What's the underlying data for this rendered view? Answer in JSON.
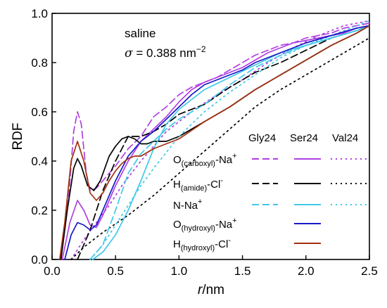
{
  "chart_data": {
    "type": "line",
    "annotation": {
      "line1": "saline",
      "sigma_symbol": "σ",
      "sigma_value": " = 0.388 nm",
      "sigma_exp": "−2"
    },
    "xlabel": {
      "italic": "r",
      "rest": "/nm"
    },
    "ylabel": "RDF",
    "xlim": [
      0.0,
      2.5
    ],
    "ylim": [
      0.0,
      1.0
    ],
    "x_ticks": [
      "0.0",
      "0.5",
      "1.0",
      "1.5",
      "2.0",
      "2.5"
    ],
    "y_ticks": [
      "0.0",
      "0.2",
      "0.4",
      "0.6",
      "0.8",
      "1.0"
    ],
    "grid": false,
    "legend": {
      "position": "lower-right",
      "columns": [
        "Gly24",
        "Ser24",
        "Val24"
      ],
      "rows": [
        {
          "base": "O",
          "sub": "(carboxyl)",
          "tail": "-Na",
          "sup": "+",
          "color": "#b040e0"
        },
        {
          "base": "H",
          "sub": "(amide)",
          "tail": "-Cl",
          "sup": "-",
          "color": "#000000"
        },
        {
          "base": "N-Na",
          "sub": "",
          "tail": "",
          "sup": "+",
          "color": "#40c8e8"
        },
        {
          "base": "O",
          "sub": "(hydroxyl)",
          "tail": "-Na",
          "sup": "+",
          "color": "#1818c8"
        },
        {
          "base": "H",
          "sub": "(hydroxyl)",
          "tail": "-Cl",
          "sup": "-",
          "color": "#a03010"
        }
      ]
    },
    "series": [
      {
        "pair": "O(carboxyl)-Na+",
        "molecule": "Gly24",
        "style": "dashed",
        "color": "#b040e0",
        "x": [
          0.07,
          0.13,
          0.17,
          0.2,
          0.23,
          0.27,
          0.3,
          0.35,
          0.4,
          0.5,
          0.6,
          0.7,
          0.8,
          0.9,
          1.0,
          1.1,
          1.2,
          1.3,
          1.4,
          1.5,
          1.6,
          1.7,
          1.8,
          1.9,
          2.0,
          2.1,
          2.2,
          2.3,
          2.4,
          2.5
        ],
        "y": [
          0.0,
          0.25,
          0.52,
          0.6,
          0.55,
          0.35,
          0.28,
          0.29,
          0.32,
          0.38,
          0.45,
          0.5,
          0.58,
          0.62,
          0.67,
          0.7,
          0.72,
          0.74,
          0.77,
          0.8,
          0.83,
          0.85,
          0.87,
          0.88,
          0.9,
          0.91,
          0.92,
          0.94,
          0.95,
          0.96
        ]
      },
      {
        "pair": "O(carboxyl)-Na+",
        "molecule": "Ser24",
        "style": "solid",
        "color": "#b040e0",
        "x": [
          0.08,
          0.14,
          0.2,
          0.25,
          0.3,
          0.35,
          0.4,
          0.5,
          0.6,
          0.7,
          0.8,
          0.9,
          1.0,
          1.1,
          1.2,
          1.3,
          1.4,
          1.5,
          1.6,
          1.7,
          1.8,
          1.9,
          2.0,
          2.1,
          2.2,
          2.3,
          2.4,
          2.5
        ],
        "y": [
          0.0,
          0.15,
          0.24,
          0.2,
          0.14,
          0.13,
          0.18,
          0.3,
          0.4,
          0.48,
          0.53,
          0.58,
          0.64,
          0.69,
          0.72,
          0.74,
          0.76,
          0.78,
          0.81,
          0.84,
          0.86,
          0.88,
          0.89,
          0.9,
          0.91,
          0.92,
          0.94,
          0.95
        ]
      },
      {
        "pair": "O(carboxyl)-Na+",
        "molecule": "Val24",
        "style": "dotted",
        "color": "#b040e0",
        "x": [
          0.15,
          0.25,
          0.35,
          0.45,
          0.55,
          0.7,
          0.9,
          1.1,
          1.3,
          1.5,
          1.7,
          1.9,
          2.1,
          2.3,
          2.5
        ],
        "y": [
          0.0,
          0.08,
          0.15,
          0.22,
          0.3,
          0.4,
          0.52,
          0.6,
          0.67,
          0.73,
          0.8,
          0.86,
          0.91,
          0.95,
          0.97
        ]
      },
      {
        "pair": "H(amide)-Cl-",
        "molecule": "Gly24",
        "style": "dashed",
        "color": "#000000",
        "x": [
          0.2,
          0.3,
          0.4,
          0.5,
          0.6,
          0.7,
          0.8,
          0.9,
          1.0,
          1.2,
          1.4,
          1.6,
          1.8,
          2.0,
          2.2,
          2.4,
          2.5
        ],
        "y": [
          0.0,
          0.12,
          0.28,
          0.4,
          0.5,
          0.5,
          0.52,
          0.55,
          0.59,
          0.63,
          0.7,
          0.76,
          0.8,
          0.85,
          0.9,
          0.93,
          0.95
        ]
      },
      {
        "pair": "H(amide)-Cl-",
        "molecule": "Ser24",
        "style": "solid",
        "color": "#000000",
        "x": [
          0.07,
          0.12,
          0.17,
          0.2,
          0.23,
          0.28,
          0.33,
          0.38,
          0.45,
          0.5,
          0.55,
          0.6,
          0.65,
          0.7,
          0.75,
          0.8,
          0.9,
          1.0,
          1.2,
          1.4,
          1.6,
          1.8,
          2.0,
          2.2,
          2.4,
          2.5
        ],
        "y": [
          0.0,
          0.2,
          0.37,
          0.41,
          0.38,
          0.3,
          0.28,
          0.32,
          0.42,
          0.46,
          0.49,
          0.5,
          0.49,
          0.47,
          0.47,
          0.48,
          0.48,
          0.5,
          0.56,
          0.62,
          0.69,
          0.75,
          0.81,
          0.87,
          0.92,
          0.95
        ]
      },
      {
        "pair": "H(amide)-Cl-",
        "molecule": "Val24",
        "style": "dotted",
        "color": "#000000",
        "x": [
          0.15,
          0.25,
          0.4,
          0.6,
          0.8,
          1.0,
          1.2,
          1.4,
          1.6,
          1.8,
          2.0,
          2.2,
          2.4,
          2.5
        ],
        "y": [
          0.0,
          0.05,
          0.11,
          0.18,
          0.26,
          0.35,
          0.44,
          0.53,
          0.62,
          0.69,
          0.75,
          0.81,
          0.87,
          0.9
        ]
      },
      {
        "pair": "N-Na+",
        "molecule": "Gly24",
        "style": "dashed",
        "color": "#40c8e8",
        "x": [
          0.3,
          0.4,
          0.5,
          0.6,
          0.7,
          0.8,
          0.9,
          1.0,
          1.2,
          1.4,
          1.6,
          1.8,
          2.0,
          2.2,
          2.4,
          2.5
        ],
        "y": [
          0.0,
          0.06,
          0.2,
          0.35,
          0.43,
          0.48,
          0.53,
          0.57,
          0.63,
          0.71,
          0.78,
          0.83,
          0.87,
          0.9,
          0.93,
          0.95
        ]
      },
      {
        "pair": "N-Na+",
        "molecule": "Ser24",
        "style": "solid",
        "color": "#40c8e8",
        "x": [
          0.32,
          0.4,
          0.5,
          0.6,
          0.7,
          0.8,
          0.9,
          1.0,
          1.2,
          1.4,
          1.6,
          1.8,
          2.0,
          2.2,
          2.4,
          2.5
        ],
        "y": [
          0.0,
          0.03,
          0.1,
          0.2,
          0.32,
          0.45,
          0.55,
          0.61,
          0.69,
          0.74,
          0.79,
          0.84,
          0.87,
          0.9,
          0.93,
          0.95
        ]
      },
      {
        "pair": "N-Na+",
        "molecule": "Val24",
        "style": "dotted",
        "color": "#40c8e8",
        "x": [
          0.3,
          0.4,
          0.5,
          0.6,
          0.7,
          0.8,
          1.0,
          1.2,
          1.4,
          1.6,
          1.8,
          2.0,
          2.2,
          2.4,
          2.5
        ],
        "y": [
          0.0,
          0.06,
          0.14,
          0.22,
          0.3,
          0.37,
          0.5,
          0.6,
          0.68,
          0.75,
          0.82,
          0.87,
          0.91,
          0.95,
          0.97
        ]
      },
      {
        "pair": "O(hydroxyl)-Na+",
        "molecule": "Ser24",
        "style": "solid",
        "color": "#1818c8",
        "x": [
          0.1,
          0.15,
          0.2,
          0.25,
          0.3,
          0.35,
          0.4,
          0.5,
          0.6,
          0.7,
          0.8,
          0.9,
          1.0,
          1.1,
          1.2,
          1.3,
          1.4,
          1.5,
          1.6,
          1.7,
          1.8,
          2.0,
          2.2,
          2.4,
          2.5
        ],
        "y": [
          0.0,
          0.1,
          0.15,
          0.14,
          0.12,
          0.14,
          0.2,
          0.32,
          0.42,
          0.48,
          0.52,
          0.57,
          0.62,
          0.67,
          0.71,
          0.73,
          0.75,
          0.77,
          0.8,
          0.82,
          0.84,
          0.88,
          0.91,
          0.94,
          0.95
        ]
      },
      {
        "pair": "H(hydroxyl)-Cl-",
        "molecule": "Ser24",
        "style": "solid",
        "color": "#a03010",
        "x": [
          0.06,
          0.1,
          0.15,
          0.2,
          0.25,
          0.3,
          0.35,
          0.4,
          0.45,
          0.5,
          0.55,
          0.6,
          0.65,
          0.7,
          0.8,
          0.9,
          1.0,
          1.2,
          1.4,
          1.6,
          1.8,
          2.0,
          2.2,
          2.4,
          2.5
        ],
        "y": [
          0.0,
          0.15,
          0.4,
          0.48,
          0.4,
          0.27,
          0.24,
          0.27,
          0.32,
          0.36,
          0.39,
          0.41,
          0.42,
          0.42,
          0.45,
          0.47,
          0.49,
          0.56,
          0.62,
          0.69,
          0.75,
          0.81,
          0.87,
          0.92,
          0.95
        ]
      }
    ]
  }
}
